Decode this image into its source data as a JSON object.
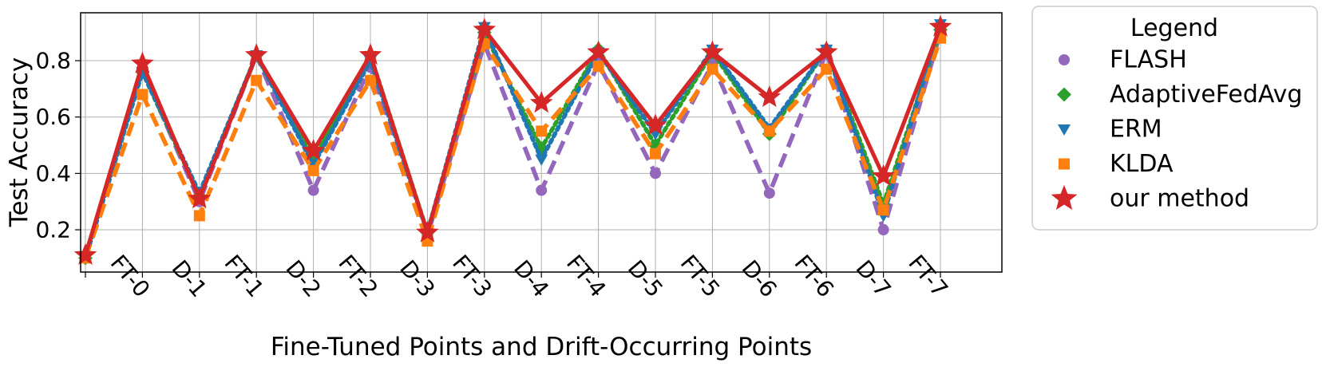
{
  "chart_data": {
    "type": "line",
    "xlabel": "Fine-Tuned Points and Drift-Occurring Points",
    "ylabel": "Test Accuracy",
    "categories": [
      "",
      "FT-0",
      "D-1",
      "FT-1",
      "D-2",
      "FT-2",
      "D-3",
      "FT-3",
      "D-4",
      "FT-4",
      "D-5",
      "FT-5",
      "D-6",
      "FT-6",
      "D-7",
      "FT-7"
    ],
    "ylim": [
      0.05,
      0.97
    ],
    "yticks": [
      {
        "value": 0.2,
        "label": "0.2"
      },
      {
        "value": 0.4,
        "label": "0.4"
      },
      {
        "value": 0.6,
        "label": "0.6"
      },
      {
        "value": 0.8,
        "label": "0.8"
      }
    ],
    "grid": true,
    "legend": {
      "title": "Legend",
      "placement": "outside-right"
    },
    "series": [
      {
        "name": "FLASH",
        "color": "#9467bd",
        "marker": "circle",
        "line": "dashed",
        "values": [
          0.1,
          0.77,
          0.3,
          0.82,
          0.34,
          0.78,
          0.18,
          0.86,
          0.34,
          0.79,
          0.4,
          0.79,
          0.33,
          0.83,
          0.2,
          0.9
        ]
      },
      {
        "name": "AdaptiveFedAvg",
        "color": "#2ca02c",
        "marker": "diamond",
        "line": "dotted",
        "values": [
          0.1,
          0.76,
          0.32,
          0.82,
          0.45,
          0.82,
          0.19,
          0.9,
          0.49,
          0.84,
          0.5,
          0.83,
          0.54,
          0.84,
          0.29,
          0.91
        ]
      },
      {
        "name": "ERM",
        "color": "#1f77b4",
        "marker": "triangle-down",
        "line": "dotted",
        "values": [
          0.1,
          0.76,
          0.33,
          0.82,
          0.43,
          0.8,
          0.19,
          0.92,
          0.45,
          0.83,
          0.54,
          0.84,
          0.56,
          0.84,
          0.25,
          0.93
        ]
      },
      {
        "name": "KLDA",
        "color": "#ff7f0e",
        "marker": "square",
        "line": "dashed",
        "values": [
          0.1,
          0.68,
          0.25,
          0.73,
          0.41,
          0.73,
          0.16,
          0.86,
          0.55,
          0.78,
          0.47,
          0.77,
          0.55,
          0.77,
          0.27,
          0.88
        ]
      },
      {
        "name": "our method",
        "color": "#d62728",
        "marker": "star",
        "line": "solid",
        "values": [
          0.11,
          0.79,
          0.31,
          0.82,
          0.48,
          0.82,
          0.19,
          0.91,
          0.65,
          0.83,
          0.57,
          0.83,
          0.67,
          0.83,
          0.39,
          0.92
        ]
      }
    ]
  }
}
